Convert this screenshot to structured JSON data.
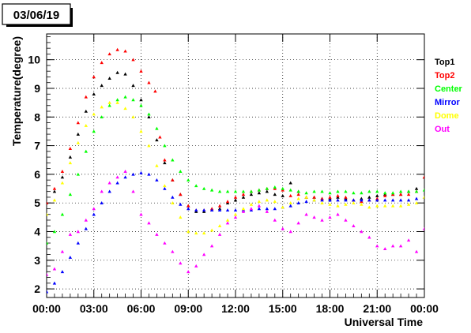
{
  "chart_data": {
    "type": "scatter",
    "title": "03/06/19",
    "xlabel": "Universal Time",
    "ylabel": "Temperature(degree)",
    "xlim": [
      0,
      24
    ],
    "ylim": [
      1.7,
      10.9
    ],
    "x_ticks": [
      "00:00",
      "03:00",
      "06:00",
      "09:00",
      "12:00",
      "15:00",
      "18:00",
      "21:00",
      "00:00"
    ],
    "y_ticks": [
      "2",
      "3",
      "4",
      "5",
      "6",
      "7",
      "8",
      "9",
      "10"
    ],
    "grid": "dotted, both axes",
    "legend_position": "right",
    "series": [
      {
        "name": "Top1",
        "color": "#000000",
        "marker": "triangle",
        "x": [
          0,
          0.5,
          1,
          1.5,
          2,
          2.5,
          3,
          3.5,
          4,
          4.5,
          5,
          5.5,
          6,
          6.5,
          7,
          7.5,
          8,
          8.5,
          9,
          9.5,
          10,
          10.5,
          11,
          11.5,
          12,
          12.5,
          13,
          13.5,
          14,
          14.5,
          15,
          15.5,
          16,
          16.5,
          17,
          17.5,
          18,
          18.5,
          19,
          19.5,
          20,
          20.5,
          21,
          21.5,
          22,
          22.5,
          23,
          23.5,
          24
        ],
        "y": [
          5.0,
          5.4,
          5.9,
          6.6,
          7.4,
          8.2,
          8.8,
          9.1,
          9.35,
          9.55,
          9.5,
          9.1,
          8.6,
          8.0,
          7.2,
          6.4,
          5.8,
          5.3,
          4.9,
          4.7,
          4.7,
          4.75,
          4.8,
          5.0,
          5.1,
          5.2,
          5.3,
          5.35,
          5.4,
          5.3,
          5.25,
          5.7,
          5.4,
          5.2,
          5.2,
          5.15,
          5.15,
          5.2,
          5.15,
          5.1,
          5.15,
          5.2,
          5.25,
          5.3,
          5.3,
          5.3,
          5.4,
          5.5,
          5.9
        ]
      },
      {
        "name": "Top2",
        "color": "#ff0000",
        "marker": "triangle",
        "x": [
          0,
          0.5,
          1,
          1.5,
          2,
          2.5,
          3,
          3.5,
          4,
          4.5,
          5,
          5.5,
          6,
          6.5,
          6.9,
          7.2,
          7.5,
          8,
          8.5,
          9,
          9.5,
          10,
          10.5,
          11,
          11.5,
          12,
          12.5,
          13,
          13.5,
          14,
          14.5,
          15,
          15.5,
          16,
          16.5,
          17,
          17.5,
          18,
          18.5,
          19,
          19.5,
          20,
          20.5,
          21,
          21.5,
          22,
          22.5,
          23,
          23.5,
          24
        ],
        "y": [
          5.0,
          5.5,
          6.1,
          6.9,
          7.8,
          8.7,
          9.4,
          9.9,
          10.2,
          10.35,
          10.3,
          10.0,
          9.6,
          9.2,
          8.9,
          7.3,
          6.5,
          5.8,
          5.3,
          4.9,
          4.75,
          4.75,
          4.8,
          4.9,
          5.05,
          5.2,
          5.3,
          5.4,
          5.45,
          5.5,
          5.5,
          5.45,
          5.25,
          5.3,
          5.2,
          5.2,
          5.15,
          5.2,
          5.25,
          5.2,
          5.1,
          5.05,
          5.1,
          5.15,
          5.25,
          5.3,
          5.3,
          5.3,
          5.4,
          5.9
        ]
      },
      {
        "name": "Center",
        "color": "#00ff00",
        "marker": "triangle",
        "x": [
          0,
          0.5,
          1,
          1.5,
          2,
          2.5,
          3,
          3.5,
          4,
          4.5,
          5,
          5.5,
          6,
          6.5,
          7,
          7.5,
          8,
          8.5,
          9,
          9.5,
          10,
          10.5,
          11,
          11.5,
          12,
          12.5,
          13,
          13.5,
          14,
          14.5,
          15,
          15.5,
          16,
          16.5,
          17,
          17.5,
          18,
          18.5,
          19,
          19.5,
          20,
          20.5,
          21,
          21.5,
          22,
          22.5,
          23,
          23.5,
          24
        ],
        "y": [
          3.6,
          4.0,
          4.6,
          5.3,
          6.0,
          6.8,
          7.5,
          8.0,
          8.4,
          8.6,
          8.7,
          8.6,
          8.4,
          8.1,
          7.6,
          7.0,
          6.5,
          6.1,
          5.8,
          5.6,
          5.5,
          5.45,
          5.4,
          5.4,
          5.4,
          5.4,
          5.4,
          5.45,
          5.5,
          5.55,
          5.5,
          5.45,
          5.4,
          5.35,
          5.4,
          5.4,
          5.35,
          5.4,
          5.4,
          5.35,
          5.35,
          5.4,
          5.4,
          5.35,
          5.35,
          5.4,
          5.4,
          5.4,
          5.45
        ]
      },
      {
        "name": "Mirror",
        "color": "#0000ff",
        "marker": "triangle",
        "x": [
          0,
          0.5,
          1,
          1.5,
          2,
          2.5,
          3,
          3.5,
          4,
          4.5,
          5,
          5.5,
          6,
          6.5,
          7,
          7.5,
          8,
          8.5,
          9,
          9.5,
          10,
          10.5,
          11,
          11.5,
          12,
          12.5,
          13,
          13.5,
          14,
          14.5,
          15,
          15.5,
          16,
          16.5,
          17,
          17.5,
          18,
          18.5,
          19,
          19.5,
          20,
          20.5,
          21,
          21.5,
          22,
          22.5,
          23,
          23.5,
          24
        ],
        "y": [
          1.9,
          2.2,
          2.6,
          3.1,
          3.6,
          4.1,
          4.6,
          5.0,
          5.4,
          5.7,
          5.9,
          6.0,
          6.05,
          6.0,
          5.8,
          5.5,
          5.2,
          4.95,
          4.8,
          4.75,
          4.75,
          4.75,
          4.75,
          4.75,
          4.75,
          4.75,
          4.75,
          4.8,
          4.8,
          4.8,
          4.85,
          4.9,
          5.0,
          5.05,
          5.1,
          5.1,
          5.1,
          5.1,
          5.1,
          5.1,
          5.1,
          5.1,
          5.1,
          5.1,
          5.1,
          5.1,
          5.1,
          5.15,
          5.2
        ]
      },
      {
        "name": "Dome",
        "color": "#ffff00",
        "marker": "triangle",
        "x": [
          0,
          0.5,
          1,
          1.5,
          2,
          2.5,
          3,
          3.5,
          4,
          4.5,
          5,
          5.5,
          6,
          6.5,
          7,
          7.5,
          8,
          8.5,
          9,
          9.5,
          10,
          10.5,
          11,
          11.5,
          12,
          12.5,
          13,
          13.5,
          14,
          14.5,
          15,
          15.5,
          16,
          16.5,
          17,
          17.5,
          18,
          18.5,
          19,
          19.5,
          20,
          20.5,
          21,
          21.5,
          22,
          22.5,
          23,
          23.5,
          24
        ],
        "y": [
          4.6,
          5.1,
          5.7,
          6.4,
          7.1,
          7.7,
          8.1,
          8.35,
          8.5,
          8.5,
          8.3,
          8.0,
          7.5,
          7.0,
          6.3,
          5.6,
          5.0,
          4.5,
          4.0,
          3.95,
          3.95,
          4.05,
          4.2,
          4.4,
          4.6,
          4.8,
          4.95,
          5.05,
          5.1,
          5.05,
          4.85,
          5.0,
          5.15,
          5.2,
          5.1,
          5.0,
          4.95,
          4.9,
          4.95,
          5.0,
          4.95,
          4.85,
          4.9,
          4.9,
          4.9,
          4.9,
          4.95,
          5.0,
          5.2
        ]
      },
      {
        "name": "Out",
        "color": "#ff00ff",
        "marker": "triangle",
        "x": [
          0,
          0.5,
          1,
          1.5,
          2,
          2.5,
          3,
          3.5,
          4,
          4.5,
          5,
          5.5,
          6,
          6.5,
          7,
          7.5,
          8,
          8.5,
          9,
          9.5,
          10,
          10.5,
          11,
          11.5,
          12,
          12.5,
          13,
          13.5,
          14,
          14.5,
          15,
          15.5,
          16,
          16.5,
          17,
          17.5,
          18,
          18.5,
          19,
          19.5,
          20,
          20.5,
          21,
          21.5,
          22,
          22.5,
          23,
          23.5,
          24
        ],
        "y": [
          2.5,
          2.7,
          3.3,
          3.9,
          4.0,
          4.4,
          4.8,
          5.4,
          5.7,
          5.9,
          6.1,
          5.4,
          4.6,
          4.3,
          3.9,
          3.6,
          3.3,
          2.9,
          2.6,
          2.8,
          3.2,
          3.5,
          3.9,
          4.3,
          4.5,
          4.7,
          4.8,
          4.9,
          4.7,
          4.4,
          4.1,
          4.0,
          4.3,
          4.6,
          4.5,
          4.4,
          4.5,
          4.6,
          4.4,
          4.2,
          4.0,
          3.8,
          3.5,
          3.4,
          3.5,
          3.5,
          3.7,
          3.3,
          4.1
        ],
        "spread": 0.5
      }
    ]
  }
}
